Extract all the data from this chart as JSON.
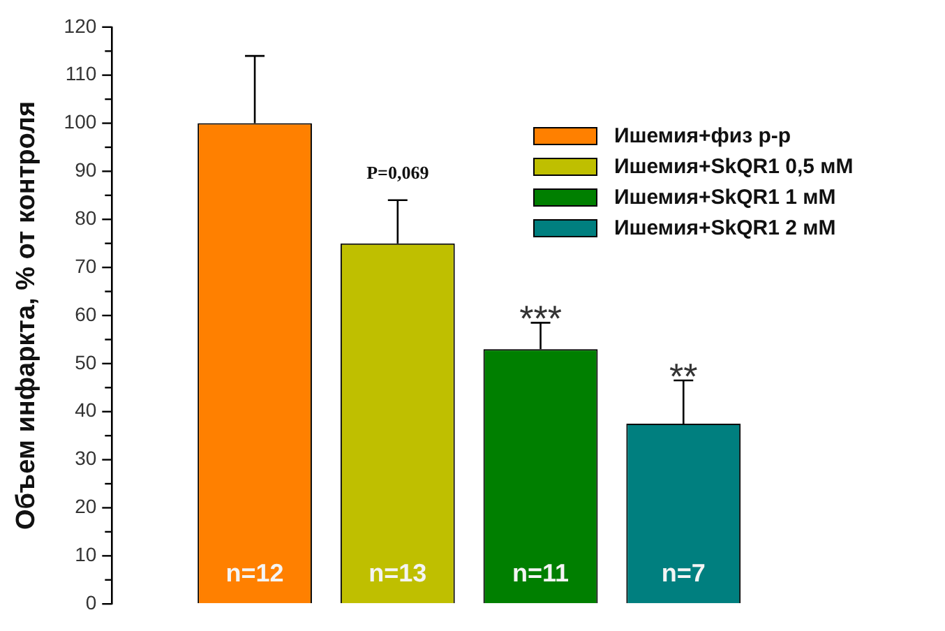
{
  "chart_data": {
    "type": "bar",
    "ylabel": "Объем инфаркта, % от контроля",
    "categories": [
      null
    ],
    "series": [
      {
        "name": "Ишемия+физ р-р",
        "color": "#ff8000",
        "values": [
          100
        ],
        "errors": [
          [
            100,
            114
          ]
        ]
      },
      {
        "name": "Ишемия+SkQR1 0,5 мМ",
        "color": "#bfbf00",
        "values": [
          75
        ],
        "errors": [
          [
            75,
            84
          ]
        ]
      },
      {
        "name": "Ишемия+SkQR1 1 мМ",
        "color": "#007f00",
        "values": [
          53
        ],
        "errors": [
          [
            53,
            58.5
          ]
        ]
      },
      {
        "name": "Ишемия+SkQR1 2 мМ",
        "color": "#007f7f",
        "values": [
          37.5
        ],
        "errors": [
          [
            37.5,
            46.5
          ]
        ]
      }
    ],
    "ylim": [
      0,
      120
    ],
    "yticks": [
      0,
      10,
      20,
      30,
      40,
      50,
      60,
      70,
      80,
      90,
      100,
      110,
      120
    ],
    "annotations": [
      {
        "text": "P=0,069",
        "y": 84
      },
      {
        "text": "***",
        "y": 58.5
      },
      {
        "text": "**",
        "y": 46.5
      },
      "n=12",
      "n=13",
      "n=11",
      "n=7"
    ],
    "grid": false,
    "legend": "top right"
  }
}
